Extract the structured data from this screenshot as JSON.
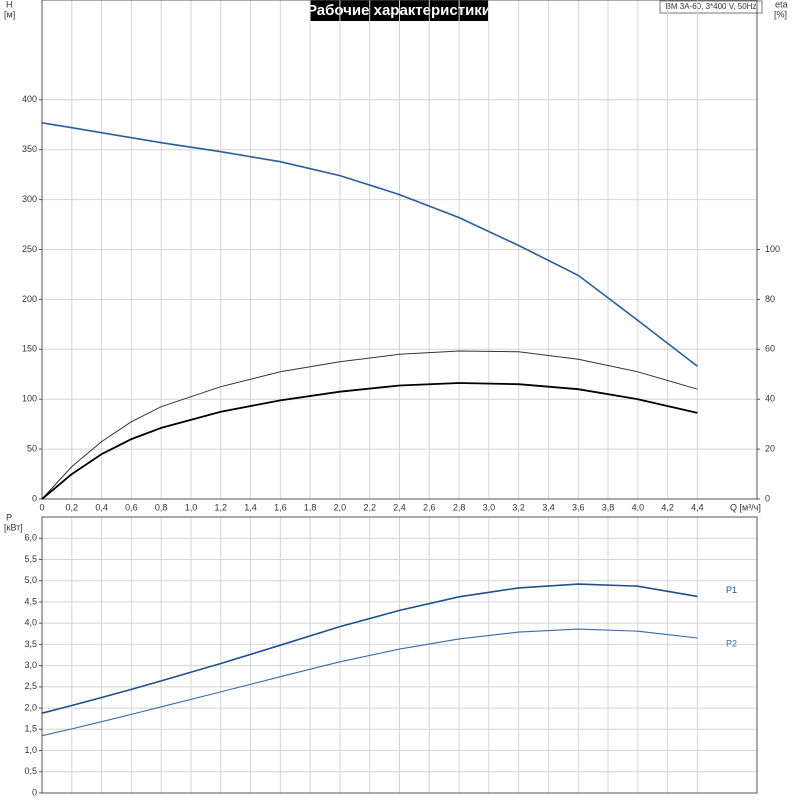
{
  "chart_data": [
    {
      "type": "line",
      "title": "Рабочие характеристики",
      "model": "BM 3A-60, 3*400 V, 50Hz",
      "xlabel": "Q [м³/ч]",
      "ylabel": "H",
      "yunit": "[м]",
      "y2label": "eta",
      "y2unit": "[%]",
      "x": [
        0,
        0.2,
        0.4,
        0.6,
        0.8,
        1.2,
        1.6,
        2.0,
        2.4,
        2.8,
        3.2,
        3.6,
        4.0,
        4.4
      ],
      "series": [
        {
          "color": "#2b5d9b",
          "values": [
            377,
            372,
            367,
            362,
            357,
            348,
            338,
            324,
            305,
            282,
            254,
            224,
            179,
            133
          ]
        },
        {
          "color": "#333333",
          "axis": "y2",
          "values": [
            0,
            13,
            23,
            31,
            37,
            45,
            51,
            55,
            58,
            59.3,
            59,
            56,
            51,
            44
          ]
        },
        {
          "color": "#000000",
          "axis": "y2",
          "values": [
            0,
            10,
            18,
            24,
            28.5,
            35,
            39.5,
            43,
            45.5,
            46.5,
            46,
            44,
            40,
            34.5
          ]
        }
      ],
      "xlim": [
        0,
        4.8
      ],
      "xticks": [
        0,
        {
          "value": 0.2,
          "label": "0,2"
        },
        {
          "value": 0.4,
          "label": "0,4"
        },
        {
          "value": 0.6,
          "label": "0,6"
        },
        {
          "value": 0.8,
          "label": "0,8"
        },
        {
          "value": 1.0,
          "label": "1,0"
        },
        {
          "value": 1.2,
          "label": "1,2"
        },
        {
          "value": 1.4,
          "label": "1,4"
        },
        {
          "value": 1.6,
          "label": "1,6"
        },
        {
          "value": 1.8,
          "label": "1,8"
        },
        {
          "value": 2.0,
          "label": "2,0"
        },
        {
          "value": 2.2,
          "label": "2,2"
        },
        {
          "value": 2.4,
          "label": "2,4"
        },
        {
          "value": 2.6,
          "label": "2,6"
        },
        {
          "value": 2.8,
          "label": "2,8"
        },
        {
          "value": 3.0,
          "label": "3,0"
        },
        {
          "value": 3.2,
          "label": "3,2"
        },
        {
          "value": 3.4,
          "label": "3,4"
        },
        {
          "value": 3.6,
          "label": "3,6"
        },
        {
          "value": 3.8,
          "label": "3,8"
        },
        {
          "value": 4.0,
          "label": "4,0"
        },
        {
          "value": 4.2,
          "label": "4,2"
        },
        {
          "value": 4.4,
          "label": "4,4"
        }
      ],
      "ylim": [
        0,
        500
      ],
      "yticks": [
        0,
        50,
        100,
        150,
        200,
        250,
        300,
        350,
        400
      ],
      "y2lim": [
        0,
        200
      ],
      "y2ticks": [
        0,
        20,
        40,
        60,
        80,
        100
      ]
    },
    {
      "type": "line",
      "ylabel": "P",
      "yunit": "[кВт]",
      "x": [
        0,
        0.2,
        0.4,
        0.6,
        0.8,
        1.2,
        1.6,
        2.0,
        2.4,
        2.8,
        3.2,
        3.6,
        4.0,
        4.4
      ],
      "series": [
        {
          "name": "P1",
          "color": "#1f4f8f",
          "values": [
            1.88,
            2.06,
            2.25,
            2.44,
            2.64,
            3.05,
            3.48,
            3.92,
            4.3,
            4.62,
            4.83,
            4.92,
            4.87,
            4.63
          ]
        },
        {
          "name": "P2",
          "color": "#3a6aa6",
          "values": [
            1.35,
            1.51,
            1.68,
            1.85,
            2.03,
            2.38,
            2.74,
            3.09,
            3.39,
            3.63,
            3.79,
            3.86,
            3.81,
            3.65
          ]
        }
      ],
      "xlim": [
        0,
        4.8
      ],
      "ylim": [
        0,
        6.5
      ],
      "yticks": [
        0,
        {
          "value": 0.5,
          "label": "0,5"
        },
        {
          "value": 1.0,
          "label": "1,0"
        },
        {
          "value": 1.5,
          "label": "1,5"
        },
        {
          "value": 2.0,
          "label": "2,0"
        },
        {
          "value": 2.5,
          "label": "2,5"
        },
        {
          "value": 3.0,
          "label": "3,0"
        },
        {
          "value": 3.5,
          "label": "3,5"
        },
        {
          "value": 4.0,
          "label": "4,0"
        },
        {
          "value": 4.5,
          "label": "4,5"
        },
        {
          "value": 5.0,
          "label": "5,0"
        },
        {
          "value": 5.5,
          "label": "5,5"
        },
        {
          "value": 6.0,
          "label": "6,0"
        }
      ]
    }
  ]
}
